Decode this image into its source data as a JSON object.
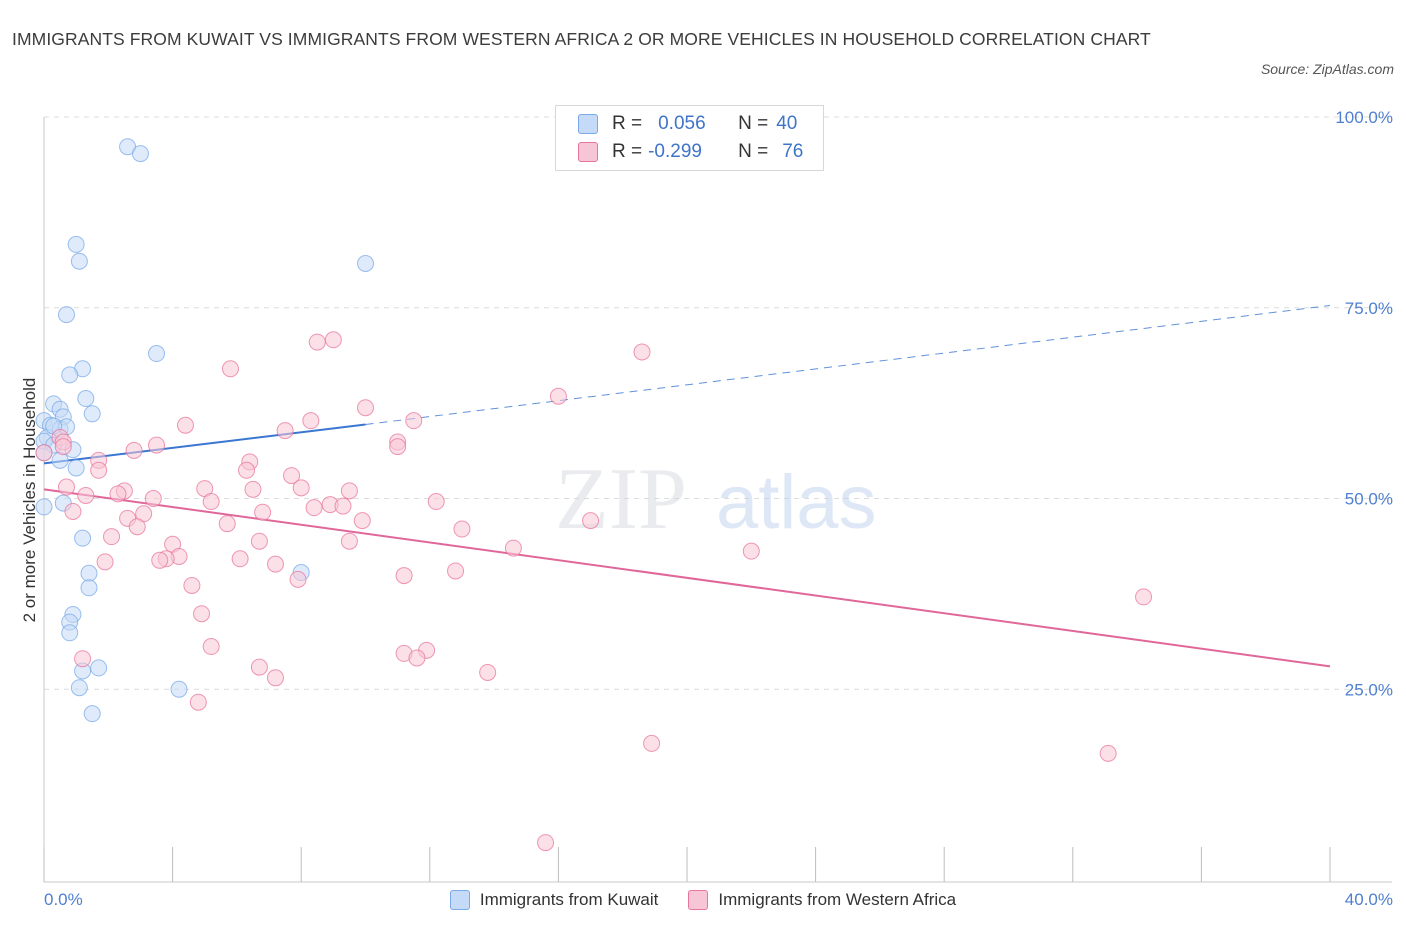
{
  "header": {
    "title": "IMMIGRANTS FROM KUWAIT VS IMMIGRANTS FROM WESTERN AFRICA 2 OR MORE VEHICLES IN HOUSEHOLD CORRELATION CHART",
    "source": "Source: ZipAtlas.com"
  },
  "watermark": {
    "zip": "ZIP",
    "atlas": "atlas"
  },
  "stats": {
    "kuwait": {
      "r_label": "R =",
      "r_value": "0.056",
      "n_label": "N =",
      "n_value": "40"
    },
    "wafrica": {
      "r_label": "R =",
      "r_value": "-0.299",
      "n_label": "N =",
      "n_value": "76"
    }
  },
  "chart_data": {
    "type": "scatter",
    "title": "IMMIGRANTS FROM KUWAIT VS IMMIGRANTS FROM WESTERN AFRICA 2 OR MORE VEHICLES IN HOUSEHOLD CORRELATION CHART",
    "xlabel": "",
    "ylabel": "2 or more Vehicles in Household",
    "xlim": [
      0,
      40
    ],
    "ylim": [
      0,
      100
    ],
    "x_tick_labels": [
      "0.0%",
      "40.0%"
    ],
    "y_tick_labels": [
      "100.0%",
      "75.0%",
      "50.0%",
      "25.0%"
    ],
    "y_ticks": [
      100,
      75,
      50,
      25
    ],
    "grid": true,
    "legend_position": "bottom-center",
    "series": [
      {
        "name": "Immigrants from Kuwait",
        "color": "#7aaae8",
        "fill": "#c5daf6",
        "trend": {
          "x": [
            0.0,
            10.0,
            40.0
          ],
          "y": [
            54.6,
            59.7,
            75.3
          ],
          "solid_until_x": 10.0
        },
        "points": [
          [
            2.6,
            96.1
          ],
          [
            3.0,
            95.2
          ],
          [
            1.0,
            83.3
          ],
          [
            1.1,
            81.1
          ],
          [
            10.0,
            80.8
          ],
          [
            0.7,
            74.1
          ],
          [
            3.5,
            69.0
          ],
          [
            1.2,
            67.0
          ],
          [
            0.8,
            66.2
          ],
          [
            1.3,
            63.1
          ],
          [
            0.3,
            62.4
          ],
          [
            0.5,
            61.7
          ],
          [
            1.5,
            61.1
          ],
          [
            0.6,
            60.7
          ],
          [
            0.0,
            60.2
          ],
          [
            0.2,
            59.6
          ],
          [
            0.5,
            59.1
          ],
          [
            0.7,
            59.4
          ],
          [
            0.1,
            58.0
          ],
          [
            0.0,
            57.5
          ],
          [
            0.3,
            57.0
          ],
          [
            0.9,
            56.4
          ],
          [
            0.0,
            56.0
          ],
          [
            0.5,
            55.0
          ],
          [
            1.0,
            54.0
          ],
          [
            0.6,
            49.4
          ],
          [
            0.0,
            48.9
          ],
          [
            1.2,
            44.8
          ],
          [
            1.4,
            40.2
          ],
          [
            8.0,
            40.3
          ],
          [
            1.4,
            38.3
          ],
          [
            0.9,
            34.8
          ],
          [
            0.8,
            33.8
          ],
          [
            0.8,
            32.4
          ],
          [
            1.7,
            27.8
          ],
          [
            1.2,
            27.4
          ],
          [
            1.1,
            25.2
          ],
          [
            4.2,
            25.0
          ],
          [
            1.5,
            21.8
          ],
          [
            0.3,
            59.5
          ]
        ]
      },
      {
        "name": "Immigrants from Western Africa",
        "color": "#e8759c",
        "fill": "#f7c6d6",
        "trend": {
          "x": [
            0.0,
            40.0
          ],
          "y": [
            51.2,
            28.0
          ],
          "solid_until_x": 40.0
        },
        "points": [
          [
            9.0,
            70.8
          ],
          [
            8.5,
            70.5
          ],
          [
            18.6,
            69.2
          ],
          [
            5.8,
            67.0
          ],
          [
            16.0,
            63.4
          ],
          [
            10.0,
            61.9
          ],
          [
            11.5,
            60.2
          ],
          [
            8.3,
            60.2
          ],
          [
            4.4,
            59.6
          ],
          [
            7.5,
            58.9
          ],
          [
            0.5,
            58.0
          ],
          [
            0.6,
            57.4
          ],
          [
            11.0,
            57.4
          ],
          [
            3.5,
            57.0
          ],
          [
            0.6,
            56.8
          ],
          [
            11.0,
            56.8
          ],
          [
            2.8,
            56.3
          ],
          [
            0.0,
            56.0
          ],
          [
            1.7,
            55.0
          ],
          [
            6.4,
            54.8
          ],
          [
            6.3,
            53.7
          ],
          [
            1.7,
            53.7
          ],
          [
            7.7,
            53.0
          ],
          [
            0.7,
            51.5
          ],
          [
            8.0,
            51.4
          ],
          [
            5.0,
            51.3
          ],
          [
            6.5,
            51.2
          ],
          [
            9.5,
            51.0
          ],
          [
            2.5,
            51.0
          ],
          [
            2.3,
            50.6
          ],
          [
            1.3,
            50.4
          ],
          [
            3.4,
            50.0
          ],
          [
            5.2,
            49.6
          ],
          [
            12.2,
            49.6
          ],
          [
            8.9,
            49.2
          ],
          [
            9.3,
            49.0
          ],
          [
            8.4,
            48.8
          ],
          [
            0.9,
            48.3
          ],
          [
            6.8,
            48.2
          ],
          [
            3.1,
            48.0
          ],
          [
            2.6,
            47.4
          ],
          [
            9.9,
            47.1
          ],
          [
            17.0,
            47.1
          ],
          [
            5.7,
            46.7
          ],
          [
            2.9,
            46.3
          ],
          [
            13.0,
            46.0
          ],
          [
            2.1,
            45.0
          ],
          [
            9.5,
            44.4
          ],
          [
            6.7,
            44.4
          ],
          [
            4.0,
            44.0
          ],
          [
            14.6,
            43.5
          ],
          [
            22.0,
            43.1
          ],
          [
            4.2,
            42.4
          ],
          [
            3.8,
            42.1
          ],
          [
            6.1,
            42.1
          ],
          [
            3.6,
            41.9
          ],
          [
            1.9,
            41.7
          ],
          [
            7.2,
            41.4
          ],
          [
            12.8,
            40.5
          ],
          [
            11.2,
            39.9
          ],
          [
            7.9,
            39.4
          ],
          [
            4.6,
            38.6
          ],
          [
            34.2,
            37.1
          ],
          [
            4.9,
            34.9
          ],
          [
            5.2,
            30.6
          ],
          [
            11.9,
            30.1
          ],
          [
            11.2,
            29.7
          ],
          [
            11.6,
            29.1
          ],
          [
            1.2,
            29.0
          ],
          [
            6.7,
            27.9
          ],
          [
            13.8,
            27.2
          ],
          [
            7.2,
            26.5
          ],
          [
            4.8,
            23.3
          ],
          [
            18.9,
            17.9
          ],
          [
            33.1,
            16.6
          ],
          [
            15.6,
            4.9
          ]
        ]
      }
    ]
  }
}
